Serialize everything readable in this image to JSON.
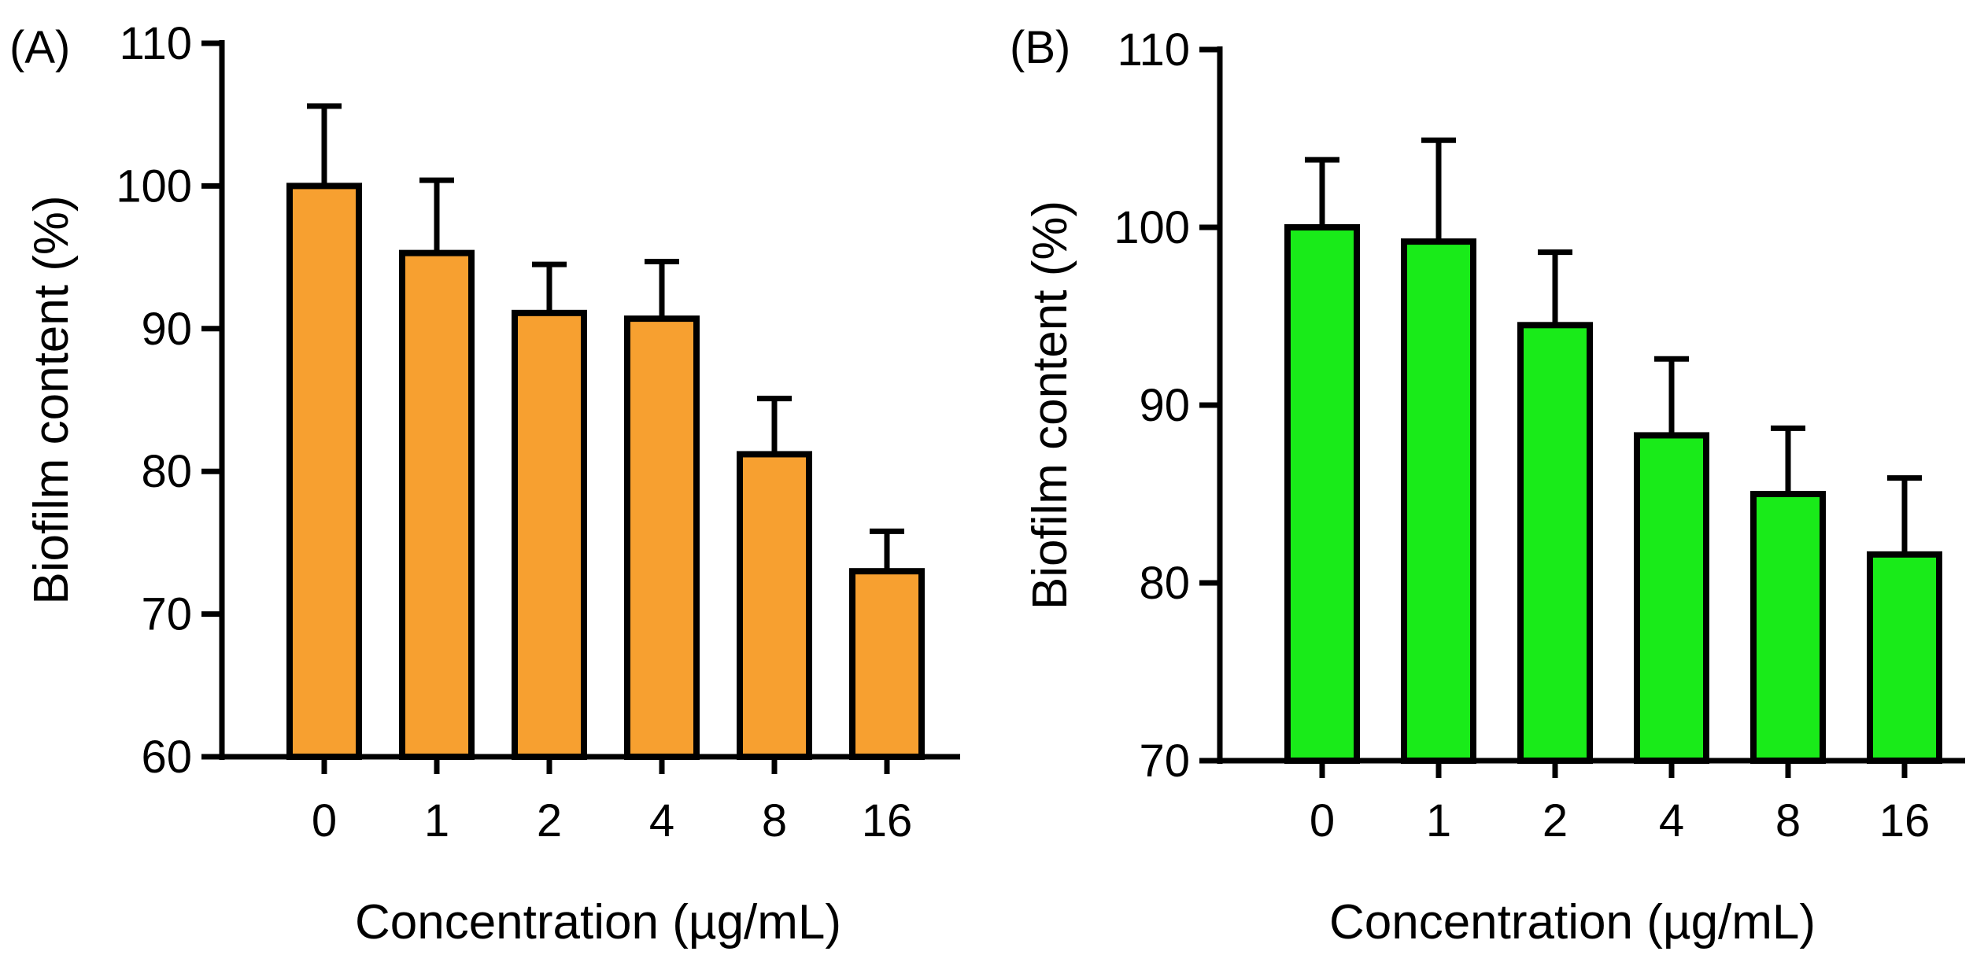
{
  "chart_data": [
    {
      "panel": "(A)",
      "type": "bar",
      "categories": [
        "0",
        "1",
        "2",
        "4",
        "8",
        "16"
      ],
      "values": [
        100,
        95.3,
        91.1,
        90.7,
        81.2,
        73.0
      ],
      "errors": [
        5.6,
        5.1,
        3.4,
        4.0,
        3.9,
        2.8
      ],
      "xlabel": "Concentration (µg/mL)",
      "ylabel": "Biofilm content (%)",
      "ylim": [
        60,
        110
      ],
      "yticks": [
        "60",
        "70",
        "80",
        "90",
        "100",
        "110"
      ],
      "bar_color": "#F7A030"
    },
    {
      "panel": "(B)",
      "type": "bar",
      "categories": [
        "0",
        "1",
        "2",
        "4",
        "8",
        "16"
      ],
      "values": [
        100,
        99.2,
        94.5,
        88.3,
        85.0,
        81.6
      ],
      "errors": [
        3.8,
        5.7,
        4.1,
        4.3,
        3.7,
        4.3
      ],
      "xlabel": "Concentration (µg/mL)",
      "ylabel": "Biofilm content (%)",
      "ylim": [
        70,
        110
      ],
      "yticks": [
        "70",
        "80",
        "90",
        "100",
        "110"
      ],
      "bar_color": "#19EB19"
    }
  ]
}
